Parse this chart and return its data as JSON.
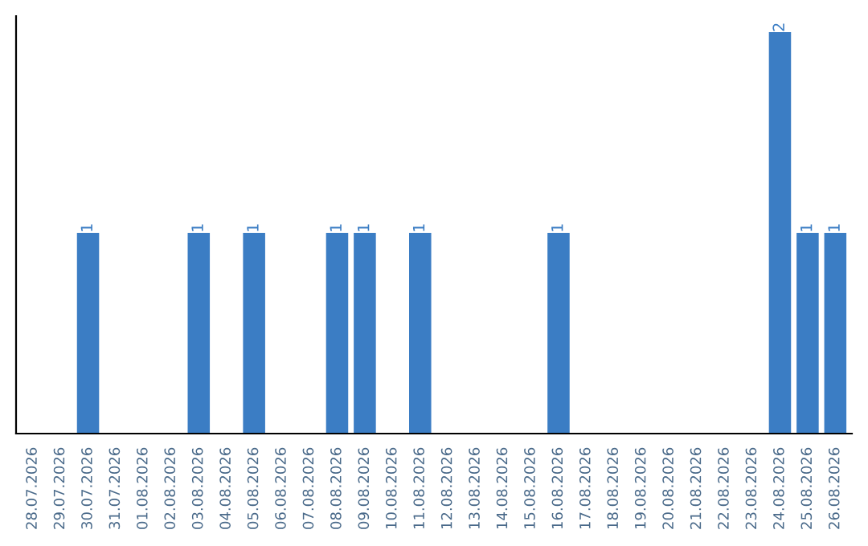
{
  "chart_data": {
    "type": "bar",
    "categories": [
      "28.07.2026",
      "29.07.2026",
      "30.07.2026",
      "31.07.2026",
      "01.08.2026",
      "02.08.2026",
      "03.08.2026",
      "04.08.2026",
      "05.08.2026",
      "06.08.2026",
      "07.08.2026",
      "08.08.2026",
      "09.08.2026",
      "10.08.2026",
      "11.08.2026",
      "12.08.2026",
      "13.08.2026",
      "14.08.2026",
      "15.08.2026",
      "16.08.2026",
      "17.08.2026",
      "18.08.2026",
      "19.08.2026",
      "20.08.2026",
      "21.08.2026",
      "22.08.2026",
      "23.08.2026",
      "24.08.2026",
      "25.08.2026",
      "26.08.2026"
    ],
    "values": [
      0,
      0,
      1,
      0,
      0,
      0,
      1,
      0,
      1,
      0,
      0,
      1,
      1,
      0,
      1,
      0,
      0,
      0,
      0,
      1,
      0,
      0,
      0,
      0,
      0,
      0,
      0,
      2,
      1,
      1
    ],
    "color": "#3b7dc4",
    "ylim": [
      0,
      2.08
    ],
    "value_labels": [
      null,
      null,
      "1",
      null,
      null,
      null,
      "1",
      null,
      "1",
      null,
      null,
      "1",
      "1",
      null,
      "1",
      null,
      null,
      null,
      null,
      "1",
      null,
      null,
      null,
      null,
      null,
      null,
      null,
      "2",
      "1",
      "1"
    ],
    "tick_labels": "x",
    "grid": false,
    "legend": false
  }
}
